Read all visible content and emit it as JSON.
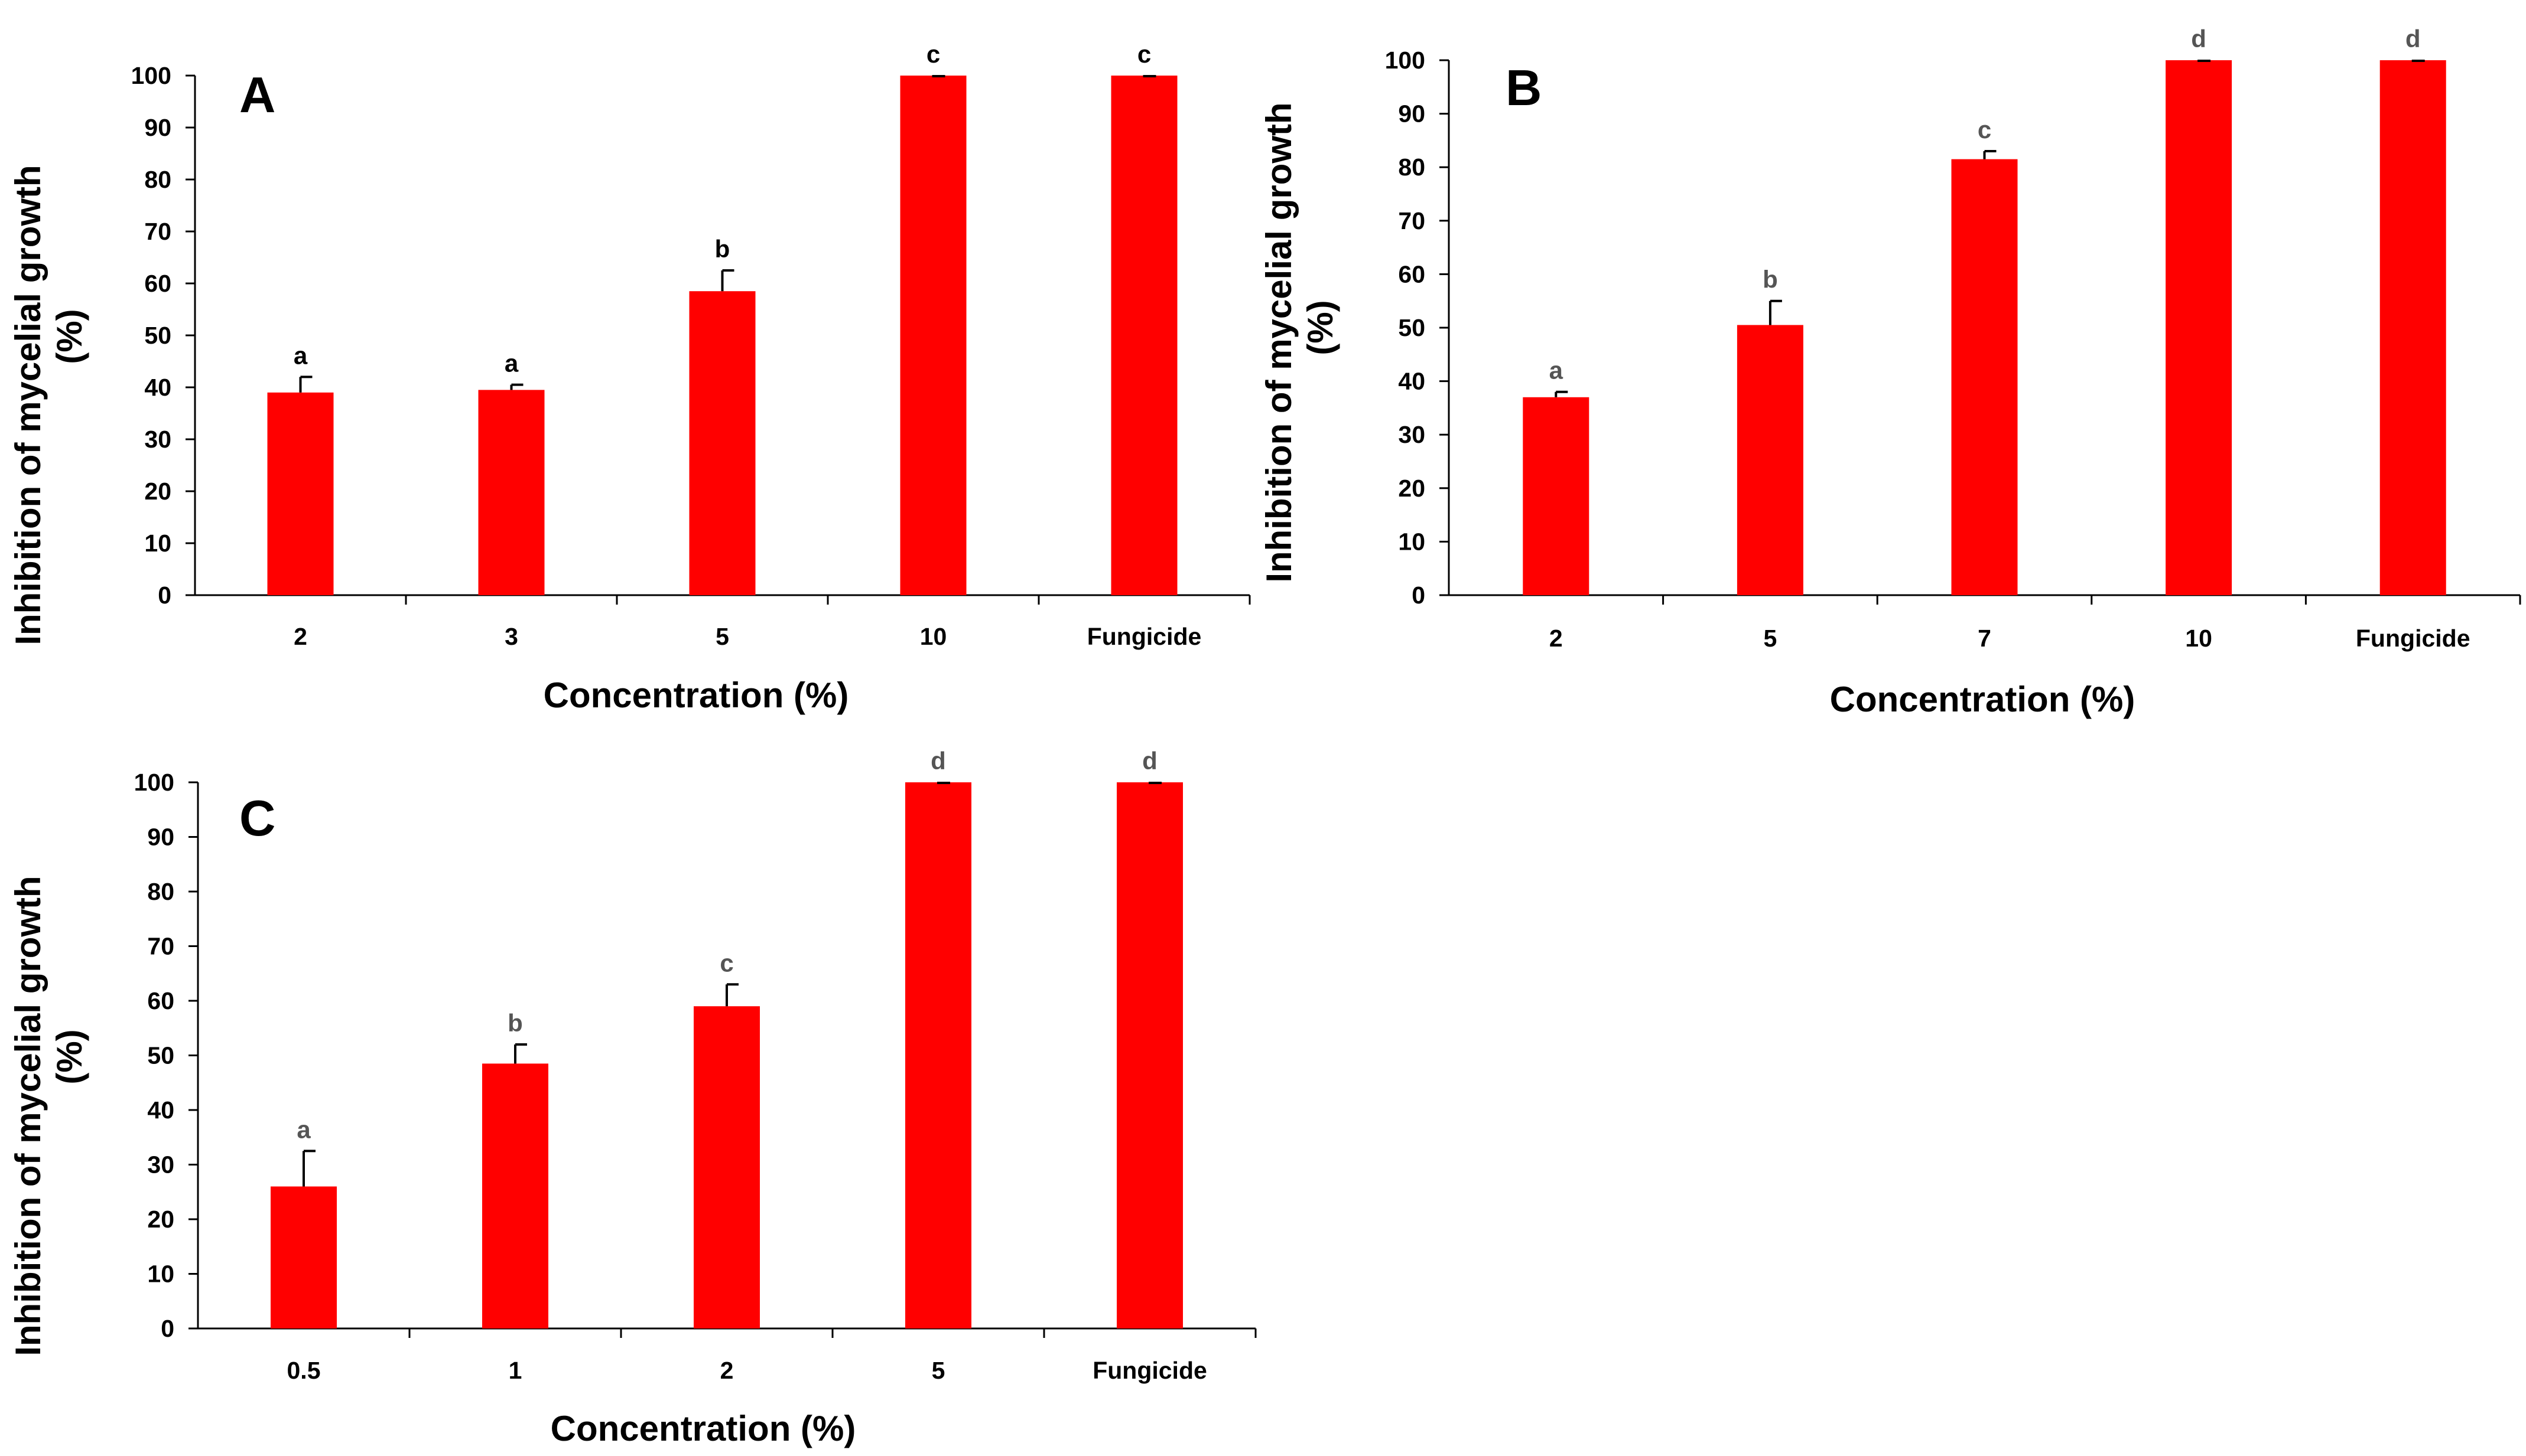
{
  "colors": {
    "bar": "#ff0000",
    "axis": "#000000",
    "error_bar": "#000000",
    "sig_label_A": "#000000",
    "sig_label_gray": "#555555"
  },
  "chart_data": [
    {
      "type": "bar",
      "panel_label": "A",
      "categories": [
        "2",
        "3",
        "5",
        "10",
        "Fungicide"
      ],
      "values": [
        39,
        39.5,
        58.5,
        100,
        100
      ],
      "error": [
        3,
        1,
        4,
        0,
        0
      ],
      "significance": [
        "a",
        "a",
        "b",
        "c",
        "c"
      ],
      "xlabel": "Concentration (%)",
      "ylabel_lines": [
        "Inhibition of mycelial growth",
        "(%)"
      ],
      "ylim": [
        0,
        100
      ],
      "yticks": [
        "0",
        "10",
        "20",
        "30",
        "40",
        "50",
        "60",
        "70",
        "80",
        "90",
        "100"
      ],
      "grid": false,
      "legend": "none"
    },
    {
      "type": "bar",
      "panel_label": "B",
      "categories": [
        "2",
        "5",
        "7",
        "10",
        "Fungicide"
      ],
      "values": [
        37,
        50.5,
        81.5,
        100,
        100
      ],
      "error": [
        1,
        4.5,
        1.5,
        0,
        0
      ],
      "significance": [
        "a",
        "b",
        "c",
        "d",
        "d"
      ],
      "xlabel": "Concentration (%)",
      "ylabel_lines": [
        "Inhibition of mycelial growth",
        "(%)"
      ],
      "ylim": [
        0,
        100
      ],
      "yticks": [
        "0",
        "10",
        "20",
        "30",
        "40",
        "50",
        "60",
        "70",
        "80",
        "90",
        "100"
      ],
      "grid": false,
      "legend": "none"
    },
    {
      "type": "bar",
      "panel_label": "C",
      "categories": [
        "0.5",
        "1",
        "2",
        "5",
        "Fungicide"
      ],
      "values": [
        26,
        48.5,
        59,
        100,
        100
      ],
      "error": [
        6.5,
        3.5,
        4,
        0,
        0
      ],
      "significance": [
        "a",
        "b",
        "c",
        "d",
        "d"
      ],
      "xlabel": "Concentration (%)",
      "ylabel_lines": [
        "Inhibition of mycelial growth",
        "(%)"
      ],
      "ylim": [
        0,
        100
      ],
      "yticks": [
        "0",
        "10",
        "20",
        "30",
        "40",
        "50",
        "60",
        "70",
        "80",
        "90",
        "100"
      ],
      "grid": false,
      "legend": "none"
    }
  ]
}
